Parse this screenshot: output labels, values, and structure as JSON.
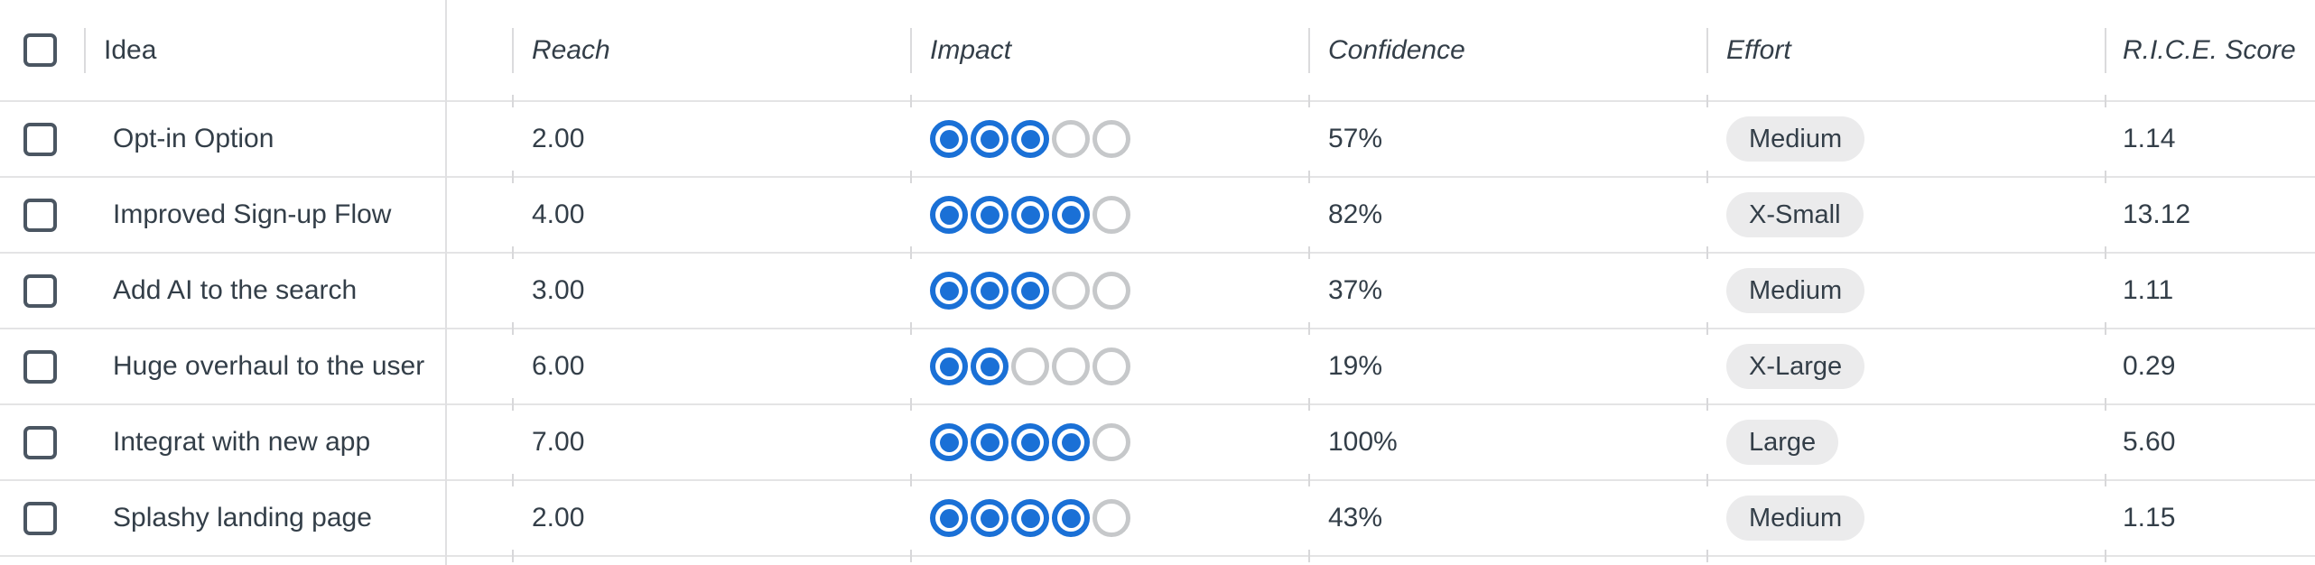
{
  "table": {
    "impact_scale": 5,
    "headers": {
      "idea": "Idea",
      "reach": "Reach",
      "impact": "Impact",
      "confidence": "Confidence",
      "effort": "Effort",
      "rice": "R.I.C.E. Score"
    },
    "rows": [
      {
        "name": "Opt-in Option",
        "reach": "2.00",
        "impact_dots": 3,
        "confidence": "57%",
        "effort": "Medium",
        "rice_score": "1.14"
      },
      {
        "name": "Improved Sign-up Flow",
        "reach": "4.00",
        "impact_dots": 4,
        "confidence": "82%",
        "effort": "X-Small",
        "rice_score": "13.12"
      },
      {
        "name": "Add AI to the search",
        "reach": "3.00",
        "impact_dots": 3,
        "confidence": "37%",
        "effort": "Medium",
        "rice_score": "1.11"
      },
      {
        "name": "Huge overhaul to the user",
        "reach": "6.00",
        "impact_dots": 2,
        "confidence": "19%",
        "effort": "X-Large",
        "rice_score": "0.29"
      },
      {
        "name": "Integrat with new app",
        "reach": "7.00",
        "impact_dots": 4,
        "confidence": "100%",
        "effort": "Large",
        "rice_score": "5.60"
      },
      {
        "name": "Splashy landing page",
        "reach": "2.00",
        "impact_dots": 4,
        "confidence": "43%",
        "effort": "Medium",
        "rice_score": "1.15"
      }
    ]
  },
  "colors": {
    "accent_blue": "#1a70d6",
    "text": "#333e48",
    "pill_bg": "#ebebec",
    "empty_dot": "#c6c8ca",
    "checkbox_border": "#4b5662",
    "row_border": "#e4e4e5"
  }
}
